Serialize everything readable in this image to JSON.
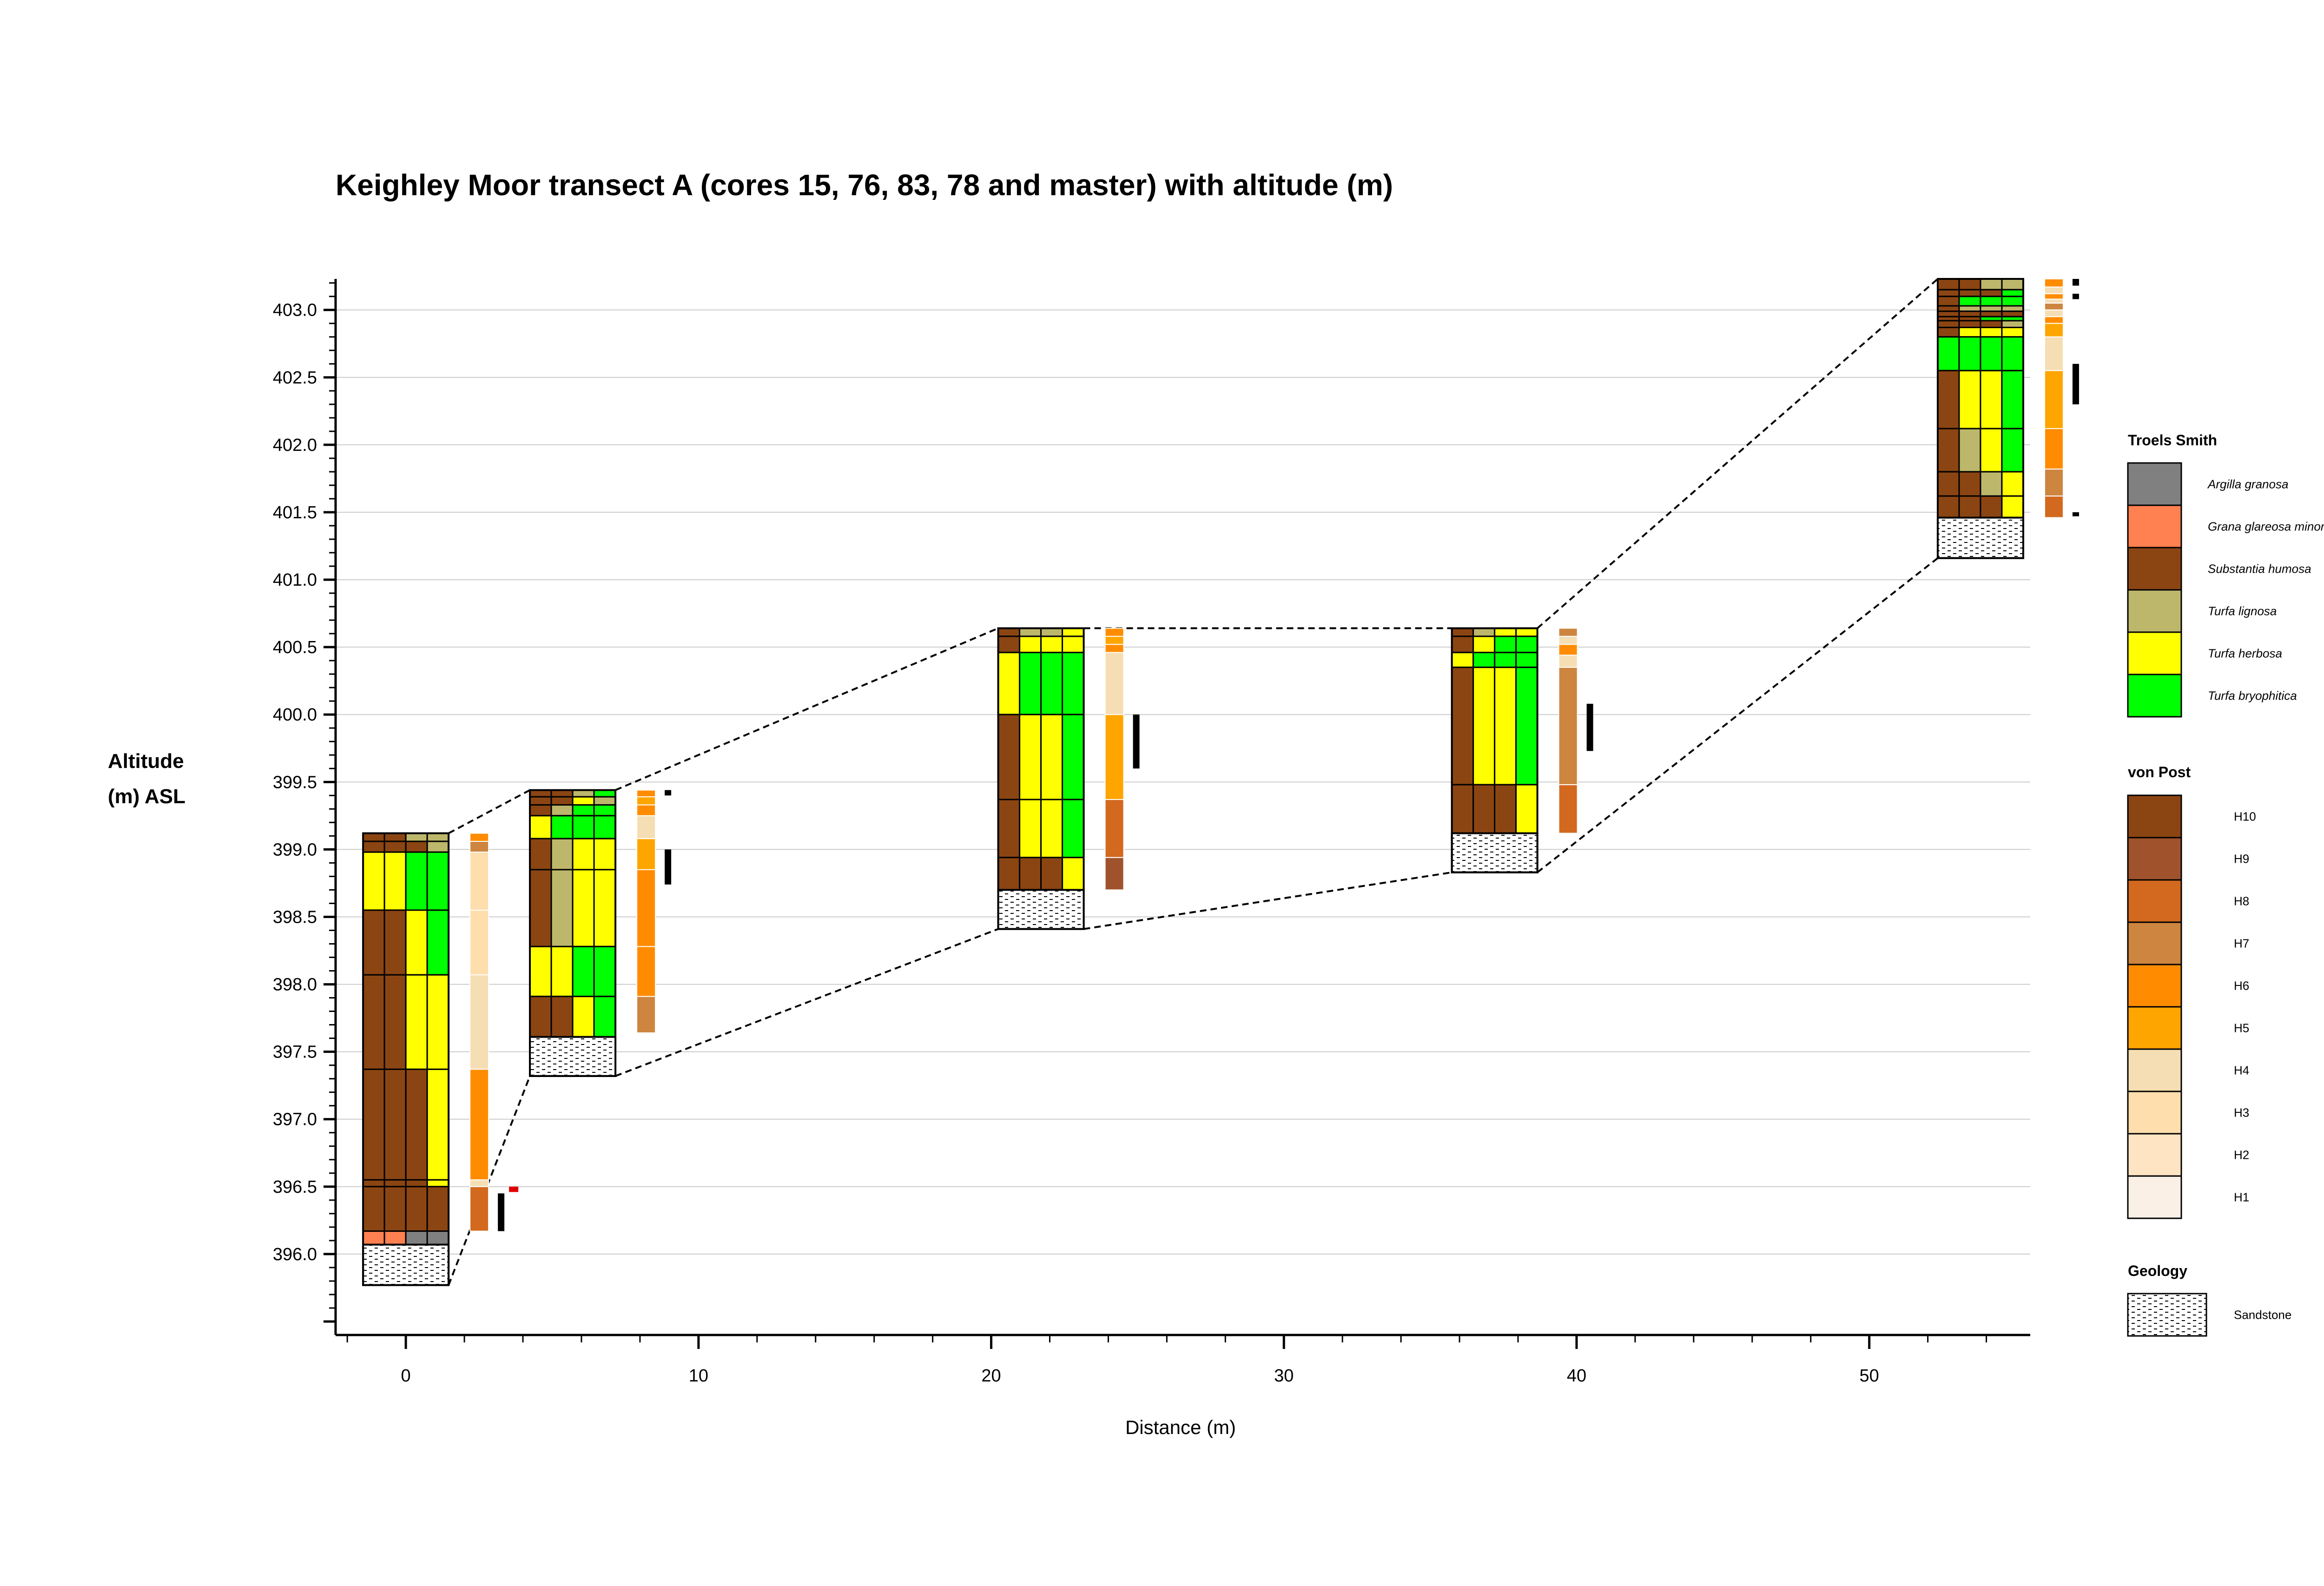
{
  "chart_data": {
    "type": "stratigraphic-transect",
    "title": "Keighley Moor transect A (cores 15, 76, 83, 78 and master) with altitude (m)",
    "xlabel": "Distance (m)",
    "ylabel_line1": "Altitude",
    "ylabel_line2": "(m) ASL",
    "xlim": [
      -2.4,
      55.5
    ],
    "ylim": [
      395.4,
      403.23
    ],
    "x_ticks": [
      0,
      10,
      20,
      30,
      40,
      50
    ],
    "x_tick_labels": [
      "0",
      "10",
      "20",
      "30",
      "40",
      "50"
    ],
    "y_ticks": [
      396.0,
      396.5,
      397.0,
      397.5,
      398.0,
      398.5,
      399.0,
      399.5,
      400.0,
      400.5,
      401.0,
      401.5,
      402.0,
      402.5,
      403.0
    ],
    "y_tick_labels": [
      "396.0",
      "396.5",
      "397.0",
      "397.5",
      "398.0",
      "398.5",
      "399.0",
      "399.5",
      "400.0",
      "400.5",
      "401.0",
      "401.5",
      "402.0",
      "402.5",
      "403.0"
    ],
    "grid": true,
    "colors": {
      "argilla": "#808080",
      "grana": "#FF8050",
      "humosa": "#8B4513",
      "lignosa": "#BDB76B",
      "herbosa": "#FFFF00",
      "bryophitica": "#00FF00",
      "H10": "#8B4513",
      "H9": "#A0522D",
      "H8": "#D2691E",
      "H7": "#CD853F",
      "H6": "#FF8C00",
      "H5": "#FFA500",
      "H4": "#F5DEB3",
      "H3": "#FFDEAD",
      "H2": "#FFE4C4",
      "H1": "#FAF0E6",
      "marker": "#000000",
      "marker_red": "#E00000"
    },
    "cores": [
      {
        "x": 0,
        "top": 399.12,
        "sediment_top": 396.07,
        "sediment_bottom": 395.77,
        "peat_layers": [
          {
            "top": 399.12,
            "bottom": 399.06,
            "comp": [
              "humosa",
              "humosa",
              "lignosa",
              "lignosa"
            ]
          },
          {
            "top": 399.06,
            "bottom": 398.98,
            "comp": [
              "humosa",
              "humosa",
              "humosa",
              "lignosa"
            ]
          },
          {
            "top": 398.98,
            "bottom": 398.55,
            "comp": [
              "herbosa",
              "herbosa",
              "bryophitica",
              "bryophitica"
            ]
          },
          {
            "top": 398.55,
            "bottom": 398.07,
            "comp": [
              "humosa",
              "humosa",
              "herbosa",
              "bryophitica"
            ]
          },
          {
            "top": 398.07,
            "bottom": 397.37,
            "comp": [
              "humosa",
              "humosa",
              "herbosa",
              "herbosa"
            ]
          },
          {
            "top": 397.37,
            "bottom": 396.55,
            "comp": [
              "humosa",
              "humosa",
              "humosa",
              "herbosa"
            ]
          },
          {
            "top": 396.55,
            "bottom": 396.5,
            "comp": [
              "humosa",
              "humosa",
              "humosa",
              "herbosa"
            ]
          },
          {
            "top": 396.5,
            "bottom": 396.17,
            "comp": [
              "humosa",
              "humosa",
              "humosa",
              "humosa"
            ]
          },
          {
            "top": 396.17,
            "bottom": 396.07,
            "comp": [
              "grana",
              "grana",
              "argilla",
              "argilla"
            ]
          }
        ],
        "humification": [
          {
            "top": 399.12,
            "bottom": 399.06,
            "class": "H6"
          },
          {
            "top": 399.06,
            "bottom": 398.98,
            "class": "H7"
          },
          {
            "top": 398.98,
            "bottom": 398.55,
            "class": "H3"
          },
          {
            "top": 398.55,
            "bottom": 398.07,
            "class": "H3"
          },
          {
            "top": 398.07,
            "bottom": 397.37,
            "class": "H4"
          },
          {
            "top": 397.37,
            "bottom": 396.55,
            "class": "H6"
          },
          {
            "top": 396.55,
            "bottom": 396.5,
            "class": "H4"
          },
          {
            "top": 396.5,
            "bottom": 396.17,
            "class": "H8"
          }
        ],
        "markers": [
          {
            "top": 396.5,
            "bottom": 396.46,
            "color": "marker_red",
            "col": 1
          },
          {
            "top": 396.45,
            "bottom": 396.17,
            "color": "marker",
            "col": 0
          }
        ]
      },
      {
        "x": 5.7,
        "top": 399.44,
        "sediment_top": 397.61,
        "sediment_bottom": 397.32,
        "peat_layers": [
          {
            "top": 399.44,
            "bottom": 399.39,
            "comp": [
              "humosa",
              "humosa",
              "lignosa",
              "bryophitica"
            ]
          },
          {
            "top": 399.39,
            "bottom": 399.33,
            "comp": [
              "humosa",
              "humosa",
              "herbosa",
              "lignosa"
            ]
          },
          {
            "top": 399.33,
            "bottom": 399.25,
            "comp": [
              "humosa",
              "lignosa",
              "bryophitica",
              "bryophitica"
            ]
          },
          {
            "top": 399.25,
            "bottom": 399.08,
            "comp": [
              "herbosa",
              "bryophitica",
              "bryophitica",
              "bryophitica"
            ]
          },
          {
            "top": 399.08,
            "bottom": 398.85,
            "comp": [
              "humosa",
              "lignosa",
              "herbosa",
              "herbosa"
            ]
          },
          {
            "top": 398.85,
            "bottom": 398.28,
            "comp": [
              "humosa",
              "lignosa",
              "herbosa",
              "herbosa"
            ]
          },
          {
            "top": 398.28,
            "bottom": 397.91,
            "comp": [
              "herbosa",
              "herbosa",
              "bryophitica",
              "bryophitica"
            ]
          },
          {
            "top": 397.91,
            "bottom": 397.61,
            "comp": [
              "humosa",
              "humosa",
              "herbosa",
              "bryophitica"
            ]
          }
        ],
        "humification": [
          {
            "top": 399.44,
            "bottom": 399.39,
            "class": "H6"
          },
          {
            "top": 399.39,
            "bottom": 399.33,
            "class": "H5"
          },
          {
            "top": 399.33,
            "bottom": 399.25,
            "class": "H6"
          },
          {
            "top": 399.25,
            "bottom": 399.08,
            "class": "H4"
          },
          {
            "top": 399.08,
            "bottom": 398.85,
            "class": "H5"
          },
          {
            "top": 398.85,
            "bottom": 398.28,
            "class": "H6"
          },
          {
            "top": 398.28,
            "bottom": 397.91,
            "class": "H6"
          },
          {
            "top": 397.91,
            "bottom": 397.64,
            "class": "H7"
          }
        ],
        "markers": [
          {
            "top": 399.44,
            "bottom": 399.4,
            "color": "marker",
            "col": 0
          },
          {
            "top": 399.0,
            "bottom": 398.74,
            "color": "marker",
            "col": 0
          }
        ]
      },
      {
        "x": 21.7,
        "top": 400.64,
        "sediment_top": 398.7,
        "sediment_bottom": 398.41,
        "peat_layers": [
          {
            "top": 400.64,
            "bottom": 400.58,
            "comp": [
              "humosa",
              "lignosa",
              "lignosa",
              "herbosa"
            ]
          },
          {
            "top": 400.58,
            "bottom": 400.46,
            "comp": [
              "humosa",
              "herbosa",
              "herbosa",
              "herbosa"
            ]
          },
          {
            "top": 400.46,
            "bottom": 400.0,
            "comp": [
              "herbosa",
              "bryophitica",
              "bryophitica",
              "bryophitica"
            ]
          },
          {
            "top": 400.0,
            "bottom": 399.37,
            "comp": [
              "humosa",
              "herbosa",
              "herbosa",
              "bryophitica"
            ]
          },
          {
            "top": 399.37,
            "bottom": 398.94,
            "comp": [
              "humosa",
              "herbosa",
              "herbosa",
              "bryophitica"
            ]
          },
          {
            "top": 398.94,
            "bottom": 398.7,
            "comp": [
              "humosa",
              "humosa",
              "humosa",
              "herbosa"
            ]
          }
        ],
        "humification": [
          {
            "top": 400.64,
            "bottom": 400.58,
            "class": "H6"
          },
          {
            "top": 400.58,
            "bottom": 400.52,
            "class": "H5"
          },
          {
            "top": 400.52,
            "bottom": 400.46,
            "class": "H6"
          },
          {
            "top": 400.46,
            "bottom": 400.0,
            "class": "H4"
          },
          {
            "top": 400.0,
            "bottom": 399.37,
            "class": "H5"
          },
          {
            "top": 399.37,
            "bottom": 398.94,
            "class": "H8"
          },
          {
            "top": 398.94,
            "bottom": 398.7,
            "class": "H9"
          }
        ],
        "markers": [
          {
            "top": 400.0,
            "bottom": 399.6,
            "color": "marker",
            "col": 0
          }
        ]
      },
      {
        "x": 37.2,
        "top": 400.64,
        "sediment_top": 399.12,
        "sediment_bottom": 398.83,
        "peat_layers": [
          {
            "top": 400.64,
            "bottom": 400.58,
            "comp": [
              "humosa",
              "lignosa",
              "herbosa",
              "herbosa"
            ]
          },
          {
            "top": 400.58,
            "bottom": 400.46,
            "comp": [
              "humosa",
              "herbosa",
              "bryophitica",
              "bryophitica"
            ]
          },
          {
            "top": 400.46,
            "bottom": 400.35,
            "comp": [
              "herbosa",
              "bryophitica",
              "bryophitica",
              "bryophitica"
            ]
          },
          {
            "top": 400.35,
            "bottom": 399.48,
            "comp": [
              "humosa",
              "herbosa",
              "herbosa",
              "bryophitica"
            ]
          },
          {
            "top": 399.48,
            "bottom": 399.12,
            "comp": [
              "humosa",
              "humosa",
              "humosa",
              "herbosa"
            ]
          }
        ],
        "humification": [
          {
            "top": 400.64,
            "bottom": 400.58,
            "class": "H7"
          },
          {
            "top": 400.58,
            "bottom": 400.52,
            "class": "H4"
          },
          {
            "top": 400.52,
            "bottom": 400.44,
            "class": "H6"
          },
          {
            "top": 400.44,
            "bottom": 400.35,
            "class": "H4"
          },
          {
            "top": 400.35,
            "bottom": 399.48,
            "class": "H7"
          },
          {
            "top": 399.48,
            "bottom": 399.12,
            "class": "H8"
          }
        ],
        "markers": [
          {
            "top": 400.08,
            "bottom": 399.73,
            "color": "marker",
            "col": 0
          }
        ]
      },
      {
        "x": 53.8,
        "top": 403.23,
        "sediment_top": 401.46,
        "sediment_bottom": 401.16,
        "peat_layers": [
          {
            "top": 403.23,
            "bottom": 403.15,
            "comp": [
              "humosa",
              "humosa",
              "lignosa",
              "lignosa"
            ]
          },
          {
            "top": 403.15,
            "bottom": 403.1,
            "comp": [
              "humosa",
              "humosa",
              "humosa",
              "bryophitica"
            ]
          },
          {
            "top": 403.1,
            "bottom": 403.03,
            "comp": [
              "humosa",
              "bryophitica",
              "bryophitica",
              "bryophitica"
            ]
          },
          {
            "top": 403.03,
            "bottom": 402.99,
            "comp": [
              "humosa",
              "lignosa",
              "lignosa",
              "lignosa"
            ]
          },
          {
            "top": 402.99,
            "bottom": 402.95,
            "comp": [
              "humosa",
              "humosa",
              "humosa",
              "humosa"
            ]
          },
          {
            "top": 402.95,
            "bottom": 402.92,
            "comp": [
              "humosa",
              "humosa",
              "bryophitica",
              "bryophitica"
            ]
          },
          {
            "top": 402.92,
            "bottom": 402.87,
            "comp": [
              "humosa",
              "humosa",
              "humosa",
              "lignosa"
            ]
          },
          {
            "top": 402.87,
            "bottom": 402.8,
            "comp": [
              "humosa",
              "herbosa",
              "herbosa",
              "herbosa"
            ]
          },
          {
            "top": 402.8,
            "bottom": 402.55,
            "comp": [
              "bryophitica",
              "bryophitica",
              "bryophitica",
              "bryophitica"
            ]
          },
          {
            "top": 402.55,
            "bottom": 402.12,
            "comp": [
              "humosa",
              "herbosa",
              "herbosa",
              "bryophitica"
            ]
          },
          {
            "top": 402.12,
            "bottom": 401.8,
            "comp": [
              "humosa",
              "lignosa",
              "herbosa",
              "bryophitica"
            ]
          },
          {
            "top": 401.8,
            "bottom": 401.62,
            "comp": [
              "humosa",
              "humosa",
              "lignosa",
              "herbosa"
            ]
          },
          {
            "top": 401.62,
            "bottom": 401.46,
            "comp": [
              "humosa",
              "humosa",
              "humosa",
              "herbosa"
            ]
          }
        ],
        "humification": [
          {
            "top": 403.23,
            "bottom": 403.17,
            "class": "H6"
          },
          {
            "top": 403.17,
            "bottom": 403.12,
            "class": "H4"
          },
          {
            "top": 403.12,
            "bottom": 403.08,
            "class": "H6"
          },
          {
            "top": 403.08,
            "bottom": 403.05,
            "class": "H4"
          },
          {
            "top": 403.05,
            "bottom": 403.0,
            "class": "H7"
          },
          {
            "top": 403.0,
            "bottom": 402.95,
            "class": "H4"
          },
          {
            "top": 402.95,
            "bottom": 402.9,
            "class": "H6"
          },
          {
            "top": 402.9,
            "bottom": 402.8,
            "class": "H5"
          },
          {
            "top": 402.8,
            "bottom": 402.55,
            "class": "H4"
          },
          {
            "top": 402.55,
            "bottom": 402.12,
            "class": "H5"
          },
          {
            "top": 402.12,
            "bottom": 401.82,
            "class": "H6"
          },
          {
            "top": 401.82,
            "bottom": 401.62,
            "class": "H7"
          },
          {
            "top": 401.62,
            "bottom": 401.46,
            "class": "H8"
          }
        ],
        "markers": [
          {
            "top": 403.23,
            "bottom": 403.18,
            "color": "marker",
            "col": 0
          },
          {
            "top": 403.12,
            "bottom": 403.08,
            "color": "marker",
            "col": 0
          },
          {
            "top": 402.6,
            "bottom": 402.3,
            "color": "marker",
            "col": 0
          },
          {
            "top": 401.5,
            "bottom": 401.47,
            "color": "marker",
            "col": 0
          }
        ]
      }
    ],
    "legend": {
      "troels_smith_title": "Troels Smith",
      "troels_smith": [
        {
          "key": "argilla",
          "label": "Argilla granosa"
        },
        {
          "key": "grana",
          "label": "Grana glareosa minora"
        },
        {
          "key": "humosa",
          "label": "Substantia humosa"
        },
        {
          "key": "lignosa",
          "label": "Turfa lignosa"
        },
        {
          "key": "herbosa",
          "label": "Turfa herbosa"
        },
        {
          "key": "bryophitica",
          "label": "Turfa bryophitica"
        }
      ],
      "von_post_title": "von Post",
      "von_post": [
        "H10",
        "H9",
        "H8",
        "H7",
        "H6",
        "H5",
        "H4",
        "H3",
        "H2",
        "H1"
      ],
      "geology_title": "Geology",
      "geology": [
        {
          "key": "sandstone",
          "label": "Sandstone"
        }
      ]
    }
  }
}
